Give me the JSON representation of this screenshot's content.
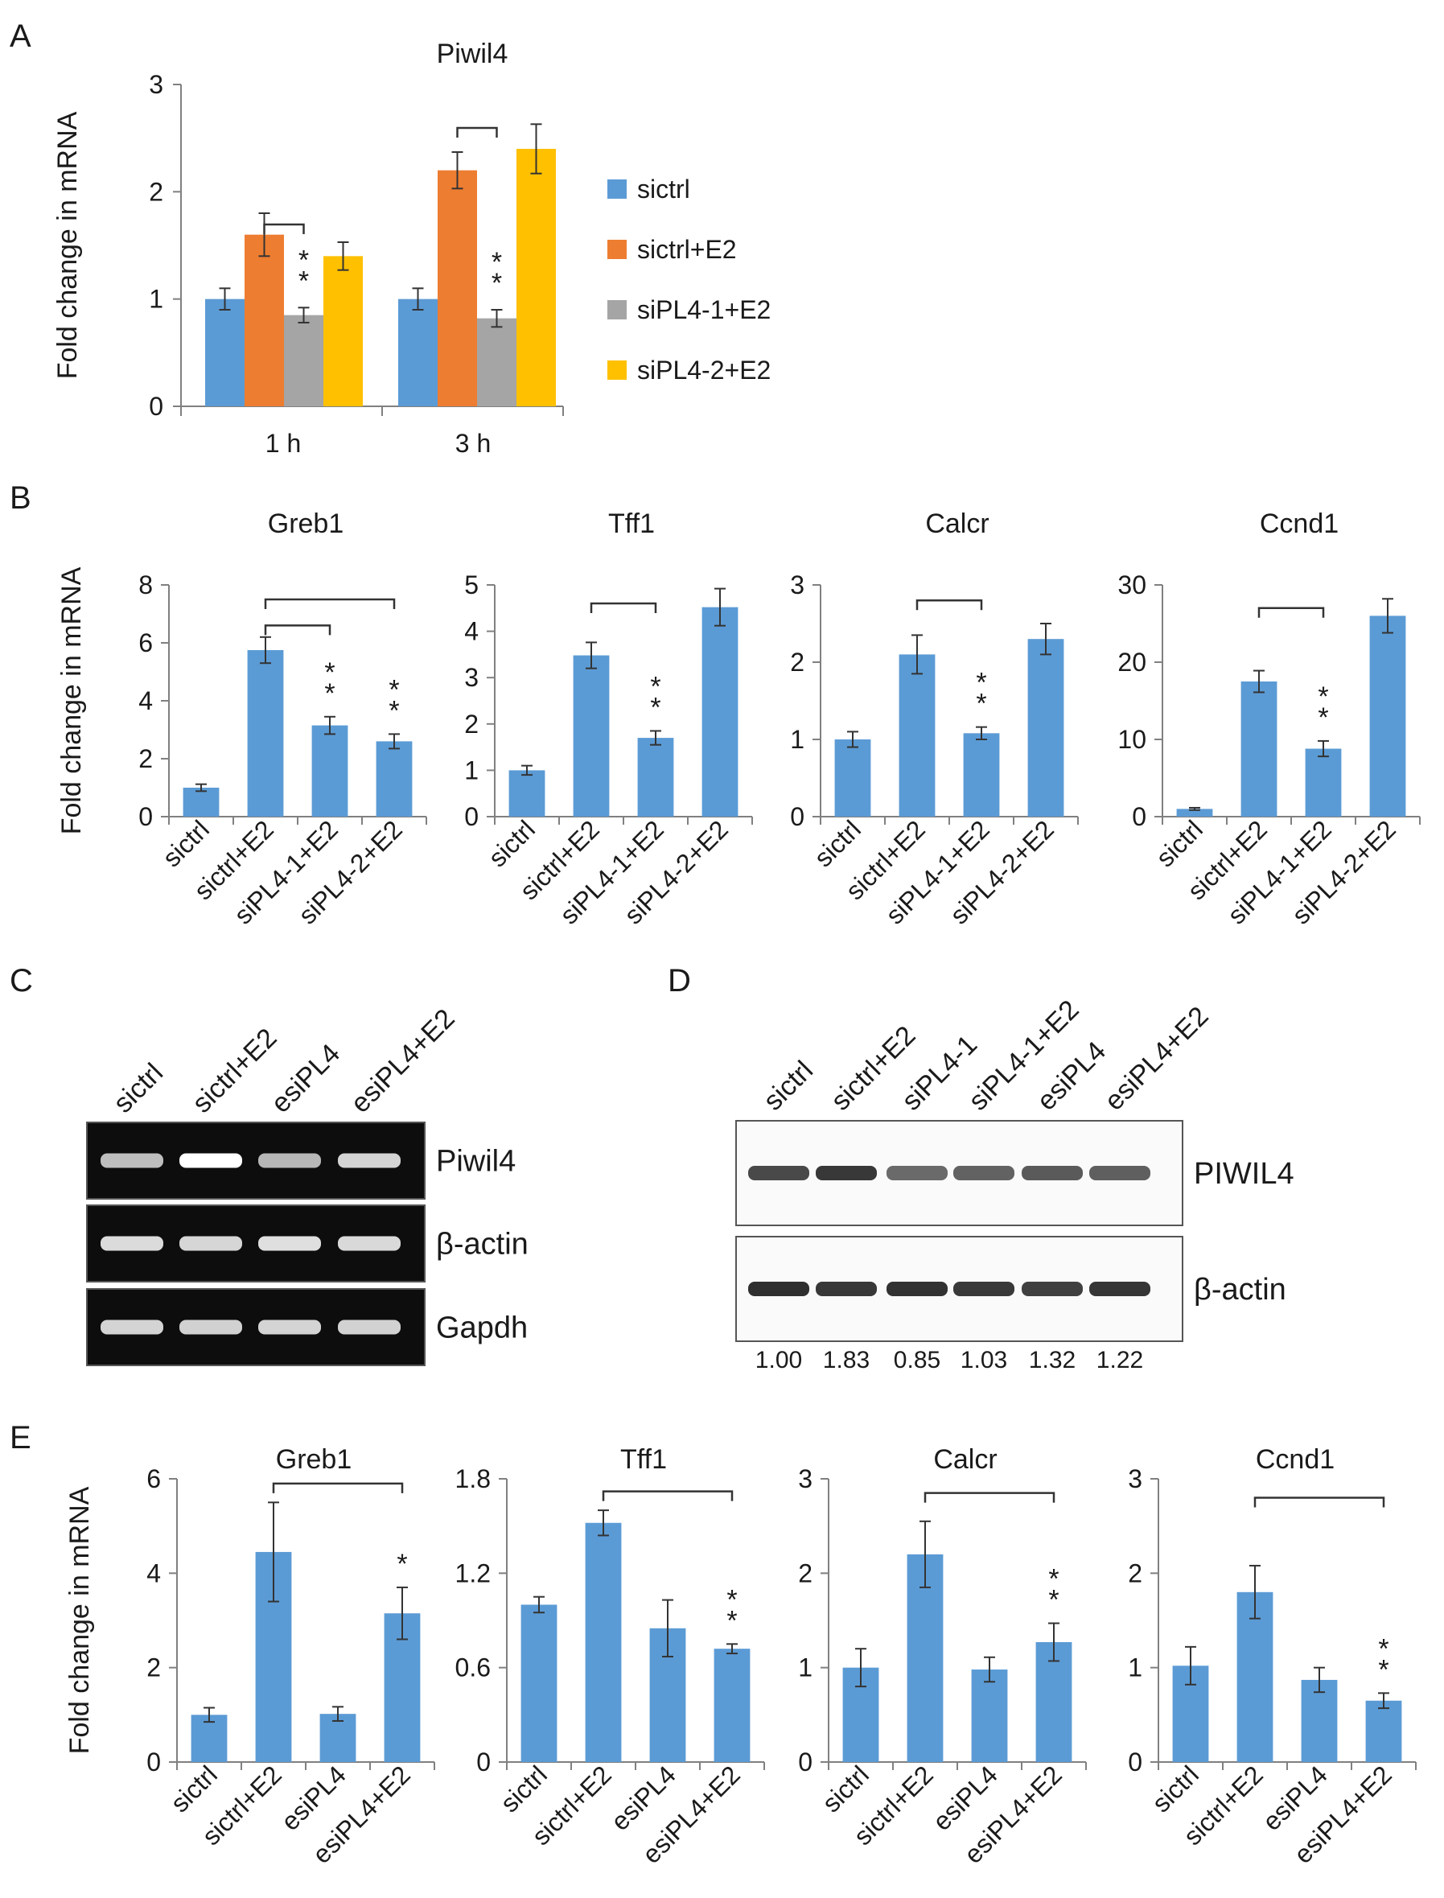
{
  "colors": {
    "sictrl": "#5B9BD5",
    "e2": "#ED7D31",
    "pl41": "#A5A5A5",
    "pl42": "#FFC000",
    "bar": "#5B9BD5",
    "axis": "#808080"
  },
  "panels": {
    "A": "A",
    "B": "B",
    "C": "C",
    "D": "D",
    "E": "E"
  },
  "chart_data": [
    {
      "id": "A",
      "type": "bar",
      "title": "Piwil4",
      "ylabel": "Fold change in mRNA",
      "categories": [
        "1 h",
        "3 h"
      ],
      "ylim": [
        0,
        3
      ],
      "yticks": [
        0,
        1,
        2,
        3
      ],
      "legend_position": "right",
      "series": [
        {
          "name": "sictrl",
          "color_key": "sictrl",
          "values": [
            1.0,
            1.0
          ],
          "errors": [
            0.1,
            0.1
          ]
        },
        {
          "name": "sictrl+E2",
          "color_key": "e2",
          "values": [
            1.6,
            2.2
          ],
          "errors": [
            0.2,
            0.17
          ]
        },
        {
          "name": "siPL4-1+E2",
          "color_key": "pl41",
          "values": [
            0.85,
            0.82
          ],
          "errors": [
            0.07,
            0.08
          ]
        },
        {
          "name": "siPL4-2+E2",
          "color_key": "pl42",
          "values": [
            1.4,
            2.4
          ],
          "errors": [
            0.13,
            0.23
          ]
        }
      ],
      "significance": [
        {
          "category": 0,
          "series": 2,
          "label": "**"
        },
        {
          "category": 1,
          "series": 2,
          "label": "**"
        }
      ],
      "brackets": [
        {
          "category": 0,
          "from": 1,
          "to": 2,
          "level": 1.8
        },
        {
          "category": 1,
          "from": 1,
          "to": 2,
          "level": 2.7
        }
      ]
    },
    {
      "id": "B1",
      "type": "bar",
      "title": "Greb1",
      "ylabel": "Fold change in mRNA",
      "categories": [
        "sictrl",
        "sictrl+E2",
        "siPL4-1+E2",
        "siPL4-2+E2"
      ],
      "values": [
        1.0,
        5.75,
        3.15,
        2.6
      ],
      "errors": [
        0.12,
        0.45,
        0.3,
        0.25
      ],
      "ylim": [
        0,
        8
      ],
      "yticks": [
        0,
        2,
        4,
        6,
        8
      ],
      "significance": [
        {
          "index": 2,
          "label": "**"
        },
        {
          "index": 3,
          "label": "**"
        }
      ],
      "brackets": [
        {
          "from": 1,
          "to": 2,
          "level": 6.6
        },
        {
          "from": 1,
          "to": 3,
          "level": 7.5
        }
      ]
    },
    {
      "id": "B2",
      "type": "bar",
      "title": "Tff1",
      "ylabel": "",
      "categories": [
        "sictrl",
        "sictrl+E2",
        "siPL4-1+E2",
        "siPL4-2+E2"
      ],
      "values": [
        1.0,
        3.48,
        1.7,
        4.52
      ],
      "errors": [
        0.1,
        0.28,
        0.15,
        0.4
      ],
      "ylim": [
        0,
        5
      ],
      "yticks": [
        0,
        1,
        2,
        3,
        4,
        5
      ],
      "significance": [
        {
          "index": 2,
          "label": "**"
        }
      ],
      "brackets": [
        {
          "from": 1,
          "to": 2,
          "level": 4.6
        }
      ]
    },
    {
      "id": "B3",
      "type": "bar",
      "title": "Calcr",
      "ylabel": "",
      "categories": [
        "sictrl",
        "sictrl+E2",
        "siPL4-1+E2",
        "siPL4-2+E2"
      ],
      "values": [
        1.0,
        2.1,
        1.08,
        2.3
      ],
      "errors": [
        0.1,
        0.25,
        0.08,
        0.2
      ],
      "ylim": [
        0,
        3
      ],
      "yticks": [
        0,
        1,
        2,
        3
      ],
      "significance": [
        {
          "index": 2,
          "label": "**"
        }
      ],
      "brackets": [
        {
          "from": 1,
          "to": 2,
          "level": 2.8
        }
      ]
    },
    {
      "id": "B4",
      "type": "bar",
      "title": "Ccnd1",
      "ylabel": "",
      "categories": [
        "sictrl",
        "sictrl+E2",
        "siPL4-1+E2",
        "siPL4-2+E2"
      ],
      "values": [
        1.0,
        17.5,
        8.8,
        26.0
      ],
      "errors": [
        0.15,
        1.4,
        1.0,
        2.2
      ],
      "ylim": [
        0,
        30
      ],
      "yticks": [
        0,
        10,
        20,
        30
      ],
      "significance": [
        {
          "index": 2,
          "label": "**"
        }
      ],
      "brackets": [
        {
          "from": 1,
          "to": 2,
          "level": 27
        }
      ]
    },
    {
      "id": "E1",
      "type": "bar",
      "title": "Greb1",
      "ylabel": "Fold change in mRNA",
      "categories": [
        "sictrl",
        "sictrl+E2",
        "esiPL4",
        "esiPL4+E2"
      ],
      "values": [
        1.0,
        4.45,
        1.02,
        3.15
      ],
      "errors": [
        0.15,
        1.05,
        0.15,
        0.55
      ],
      "ylim": [
        0,
        6
      ],
      "yticks": [
        0,
        2,
        4,
        6
      ],
      "significance": [
        {
          "index": 3,
          "label": "*"
        }
      ],
      "brackets": [
        {
          "from": 1,
          "to": 3,
          "level": 5.9
        }
      ]
    },
    {
      "id": "E2",
      "type": "bar",
      "title": "Tff1",
      "ylabel": "",
      "categories": [
        "sictrl",
        "sictrl+E2",
        "esiPL4",
        "esiPL4+E2"
      ],
      "values": [
        1.0,
        1.52,
        0.85,
        0.72
      ],
      "errors": [
        0.05,
        0.08,
        0.18,
        0.03
      ],
      "ylim": [
        0,
        1.8
      ],
      "yticks": [
        "0",
        "0.6",
        "1.2",
        "1.8"
      ],
      "ytick_values": [
        0,
        0.6,
        1.2,
        1.8
      ],
      "significance": [
        {
          "index": 3,
          "label": "**"
        }
      ],
      "brackets": [
        {
          "from": 1,
          "to": 3,
          "level": 1.72
        }
      ]
    },
    {
      "id": "E3",
      "type": "bar",
      "title": "Calcr",
      "ylabel": "",
      "categories": [
        "sictrl",
        "sictrl+E2",
        "esiPL4",
        "esiPL4+E2"
      ],
      "values": [
        1.0,
        2.2,
        0.98,
        1.27
      ],
      "errors": [
        0.2,
        0.35,
        0.13,
        0.2
      ],
      "ylim": [
        0,
        3
      ],
      "yticks": [
        0,
        1,
        2,
        3
      ],
      "significance": [
        {
          "index": 3,
          "label": "**"
        }
      ],
      "brackets": [
        {
          "from": 1,
          "to": 3,
          "level": 2.85
        }
      ]
    },
    {
      "id": "E4",
      "type": "bar",
      "title": "Ccnd1",
      "ylabel": "",
      "categories": [
        "sictrl",
        "sictrl+E2",
        "esiPL4",
        "esiPL4+E2"
      ],
      "values": [
        1.02,
        1.8,
        0.87,
        0.65
      ],
      "errors": [
        0.2,
        0.28,
        0.13,
        0.08
      ],
      "ylim": [
        0,
        3
      ],
      "yticks": [
        0,
        1,
        2,
        3
      ],
      "significance": [
        {
          "index": 3,
          "label": "**"
        }
      ],
      "brackets": [
        {
          "from": 1,
          "to": 3,
          "level": 2.8
        }
      ]
    }
  ],
  "gel_C": {
    "lanes": [
      "sictrl",
      "sictrl+E2",
      "esiPL4",
      "esiPL4+E2"
    ],
    "rows": [
      {
        "label": "Piwil4",
        "intensity": [
          0.55,
          1.0,
          0.5,
          0.7
        ]
      },
      {
        "label": "β-actin",
        "intensity": [
          0.75,
          0.72,
          0.78,
          0.74
        ]
      },
      {
        "label": "Gapdh",
        "intensity": [
          0.7,
          0.68,
          0.7,
          0.69
        ]
      }
    ]
  },
  "blot_D": {
    "lanes": [
      "sictrl",
      "sictrl+E2",
      "siPL4-1",
      "siPL4-1+E2",
      "esiPL4",
      "esiPL4+E2"
    ],
    "rows": [
      {
        "label": "PIWIL4",
        "intensity": [
          0.75,
          0.85,
          0.55,
          0.6,
          0.65,
          0.62
        ]
      },
      {
        "label": "β-actin",
        "intensity": [
          0.9,
          0.85,
          0.88,
          0.84,
          0.8,
          0.86
        ]
      }
    ],
    "quantification": [
      "1.00",
      "1.83",
      "0.85",
      "1.03",
      "1.32",
      "1.22"
    ]
  }
}
